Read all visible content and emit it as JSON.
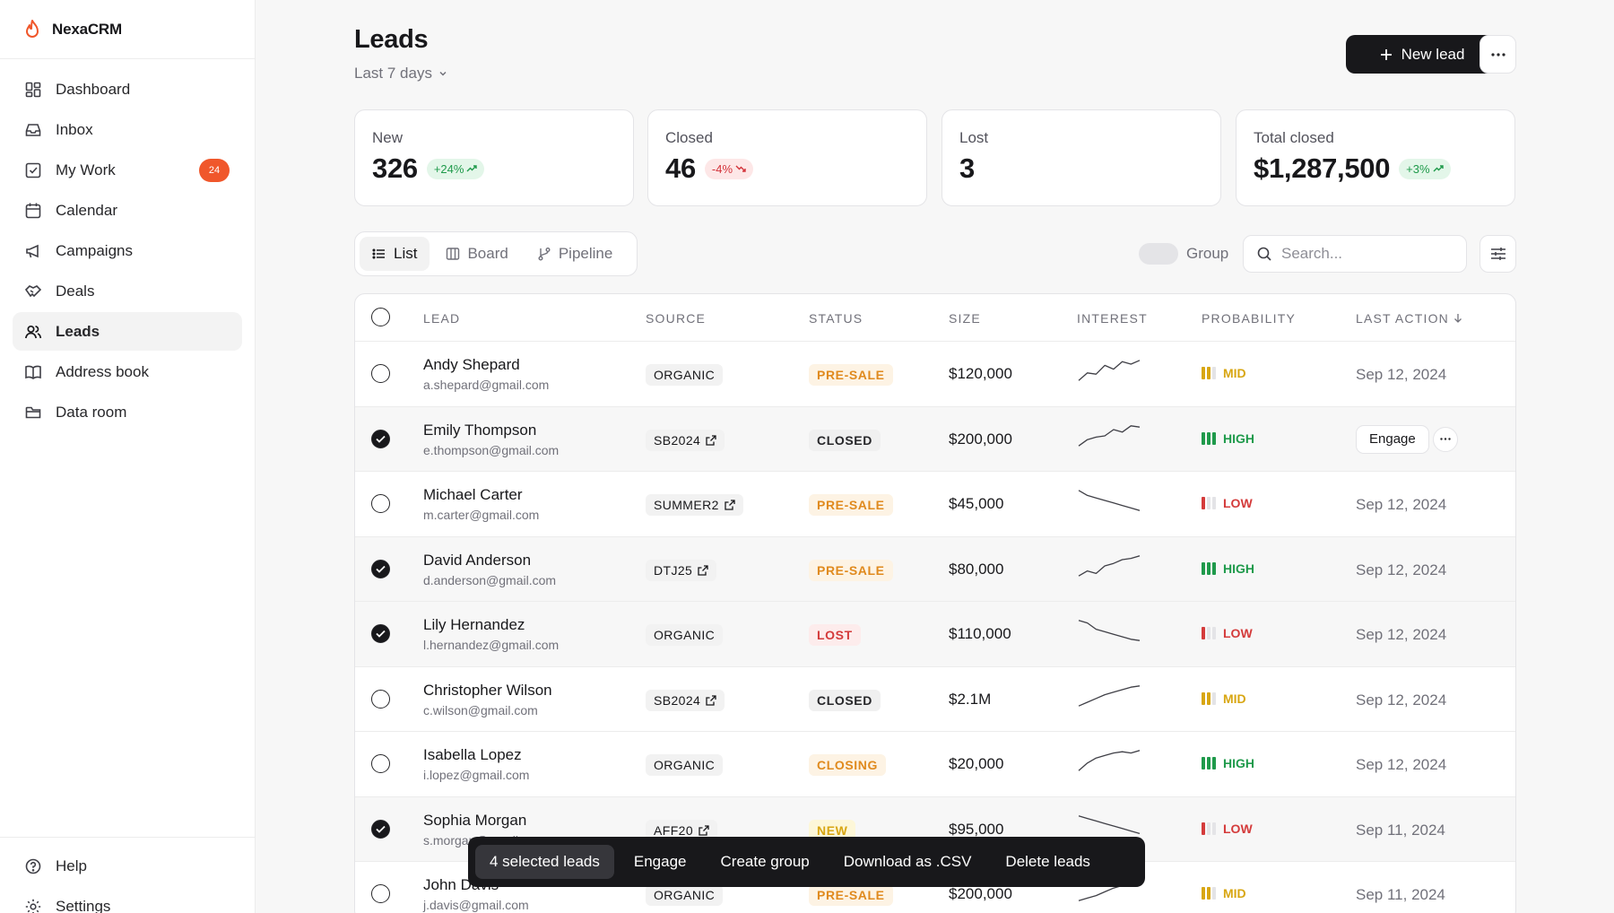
{
  "app": {
    "name": "NexaCRM"
  },
  "sidebar": {
    "items": [
      {
        "label": "Dashboard",
        "icon": "dashboard-icon"
      },
      {
        "label": "Inbox",
        "icon": "inbox-icon"
      },
      {
        "label": "My Work",
        "icon": "checkbox-icon",
        "badge": "24"
      },
      {
        "label": "Calendar",
        "icon": "calendar-icon"
      },
      {
        "label": "Campaigns",
        "icon": "megaphone-icon"
      },
      {
        "label": "Deals",
        "icon": "handshake-icon"
      },
      {
        "label": "Leads",
        "icon": "users-icon",
        "active": true
      },
      {
        "label": "Address book",
        "icon": "book-icon"
      },
      {
        "label": "Data room",
        "icon": "folder-icon"
      }
    ],
    "bottom": [
      {
        "label": "Help",
        "icon": "help-icon"
      },
      {
        "label": "Settings",
        "icon": "gear-icon"
      }
    ]
  },
  "header": {
    "title": "Leads",
    "range": "Last 7 days",
    "new_button": "New lead"
  },
  "stats": [
    {
      "label": "New",
      "value": "326",
      "delta": "+24%",
      "trend": "up"
    },
    {
      "label": "Closed",
      "value": "46",
      "delta": "-4%",
      "trend": "down"
    },
    {
      "label": "Lost",
      "value": "3",
      "delta": "",
      "trend": "none"
    },
    {
      "label": "Total closed",
      "value": "$1,287,500",
      "delta": "+3%",
      "trend": "up"
    }
  ],
  "views": {
    "list": "List",
    "board": "Board",
    "pipeline": "Pipeline",
    "active": "List"
  },
  "toolbar": {
    "group_label": "Group",
    "search_placeholder": "Search..."
  },
  "table": {
    "columns": [
      "LEAD",
      "SOURCE",
      "STATUS",
      "SIZE",
      "INTEREST",
      "PROBABILITY",
      "LAST ACTION"
    ],
    "rows": [
      {
        "name": "Andy Shepard",
        "email": "a.shepard@gmail.com",
        "source": "ORGANIC",
        "source_link": false,
        "status": "PRE-SALE",
        "size": "$120,000",
        "trend": [
          0.1,
          0.4,
          0.35,
          0.7,
          0.55,
          0.85,
          0.75,
          0.9
        ],
        "probability": "MID",
        "last_action": "Sep 12, 2024",
        "selected": false
      },
      {
        "name": "Emily Thompson",
        "email": "e.thompson@gmail.com",
        "source": "SB2024",
        "source_link": true,
        "status": "CLOSED",
        "size": "$200,000",
        "trend": [
          0.1,
          0.35,
          0.45,
          0.5,
          0.75,
          0.65,
          0.9,
          0.85
        ],
        "probability": "HIGH",
        "last_action": "",
        "selected": true,
        "engage_label": "Engage"
      },
      {
        "name": "Michael Carter",
        "email": "m.carter@gmail.com",
        "source": "SUMMER2",
        "source_link": true,
        "status": "PRE-SALE",
        "size": "$45,000",
        "trend": [
          0.9,
          0.7,
          0.6,
          0.5,
          0.4,
          0.3,
          0.2,
          0.1
        ],
        "probability": "LOW",
        "last_action": "Sep 12, 2024",
        "selected": false
      },
      {
        "name": "David Anderson",
        "email": "d.anderson@gmail.com",
        "source": "DTJ25",
        "source_link": true,
        "status": "PRE-SALE",
        "size": "$80,000",
        "trend": [
          0.1,
          0.3,
          0.2,
          0.5,
          0.6,
          0.75,
          0.8,
          0.9
        ],
        "probability": "HIGH",
        "last_action": "Sep 12, 2024",
        "selected": true
      },
      {
        "name": "Lily Hernandez",
        "email": "l.hernandez@gmail.com",
        "source": "ORGANIC",
        "source_link": false,
        "status": "LOST",
        "size": "$110,000",
        "trend": [
          0.9,
          0.8,
          0.55,
          0.45,
          0.35,
          0.25,
          0.15,
          0.1
        ],
        "probability": "LOW",
        "last_action": "Sep 12, 2024",
        "selected": true
      },
      {
        "name": "Christopher Wilson",
        "email": "c.wilson@gmail.com",
        "source": "SB2024",
        "source_link": true,
        "status": "CLOSED",
        "size": "$2.1M",
        "trend": [
          0.1,
          0.25,
          0.4,
          0.55,
          0.65,
          0.75,
          0.85,
          0.9
        ],
        "probability": "MID",
        "last_action": "Sep 12, 2024",
        "selected": false
      },
      {
        "name": "Isabella Lopez",
        "email": "i.lopez@gmail.com",
        "source": "ORGANIC",
        "source_link": false,
        "status": "CLOSING",
        "size": "$20,000",
        "trend": [
          0.1,
          0.4,
          0.6,
          0.7,
          0.8,
          0.85,
          0.8,
          0.9
        ],
        "probability": "HIGH",
        "last_action": "Sep 12, 2024",
        "selected": false
      },
      {
        "name": "Sophia Morgan",
        "email": "s.morgan@gmail.com",
        "source": "AFF20",
        "source_link": true,
        "status": "NEW",
        "size": "$95,000",
        "trend": [
          0.9,
          0.8,
          0.7,
          0.6,
          0.5,
          0.4,
          0.3,
          0.2
        ],
        "probability": "LOW",
        "last_action": "Sep 11, 2024",
        "selected": true
      },
      {
        "name": "John Davis",
        "email": "j.davis@gmail.com",
        "source": "ORGANIC",
        "source_link": false,
        "status": "PRE-SALE",
        "size": "$200,000",
        "trend": [
          0.1,
          0.2,
          0.3,
          0.45,
          0.6,
          0.7,
          0.8,
          0.9
        ],
        "probability": "MID",
        "last_action": "Sep 11, 2024",
        "selected": false
      }
    ]
  },
  "bulk": {
    "count": "4 selected leads",
    "actions": [
      "Engage",
      "Create group",
      "Download as .CSV",
      "Delete leads"
    ]
  },
  "colors": {
    "accent_orange": "#f0572b",
    "status_presale": "#e08a1e",
    "status_lost": "#d43b3b",
    "prob_high": "#1f9a4b",
    "prob_mid": "#d8a612",
    "prob_low": "#d43b3b"
  }
}
